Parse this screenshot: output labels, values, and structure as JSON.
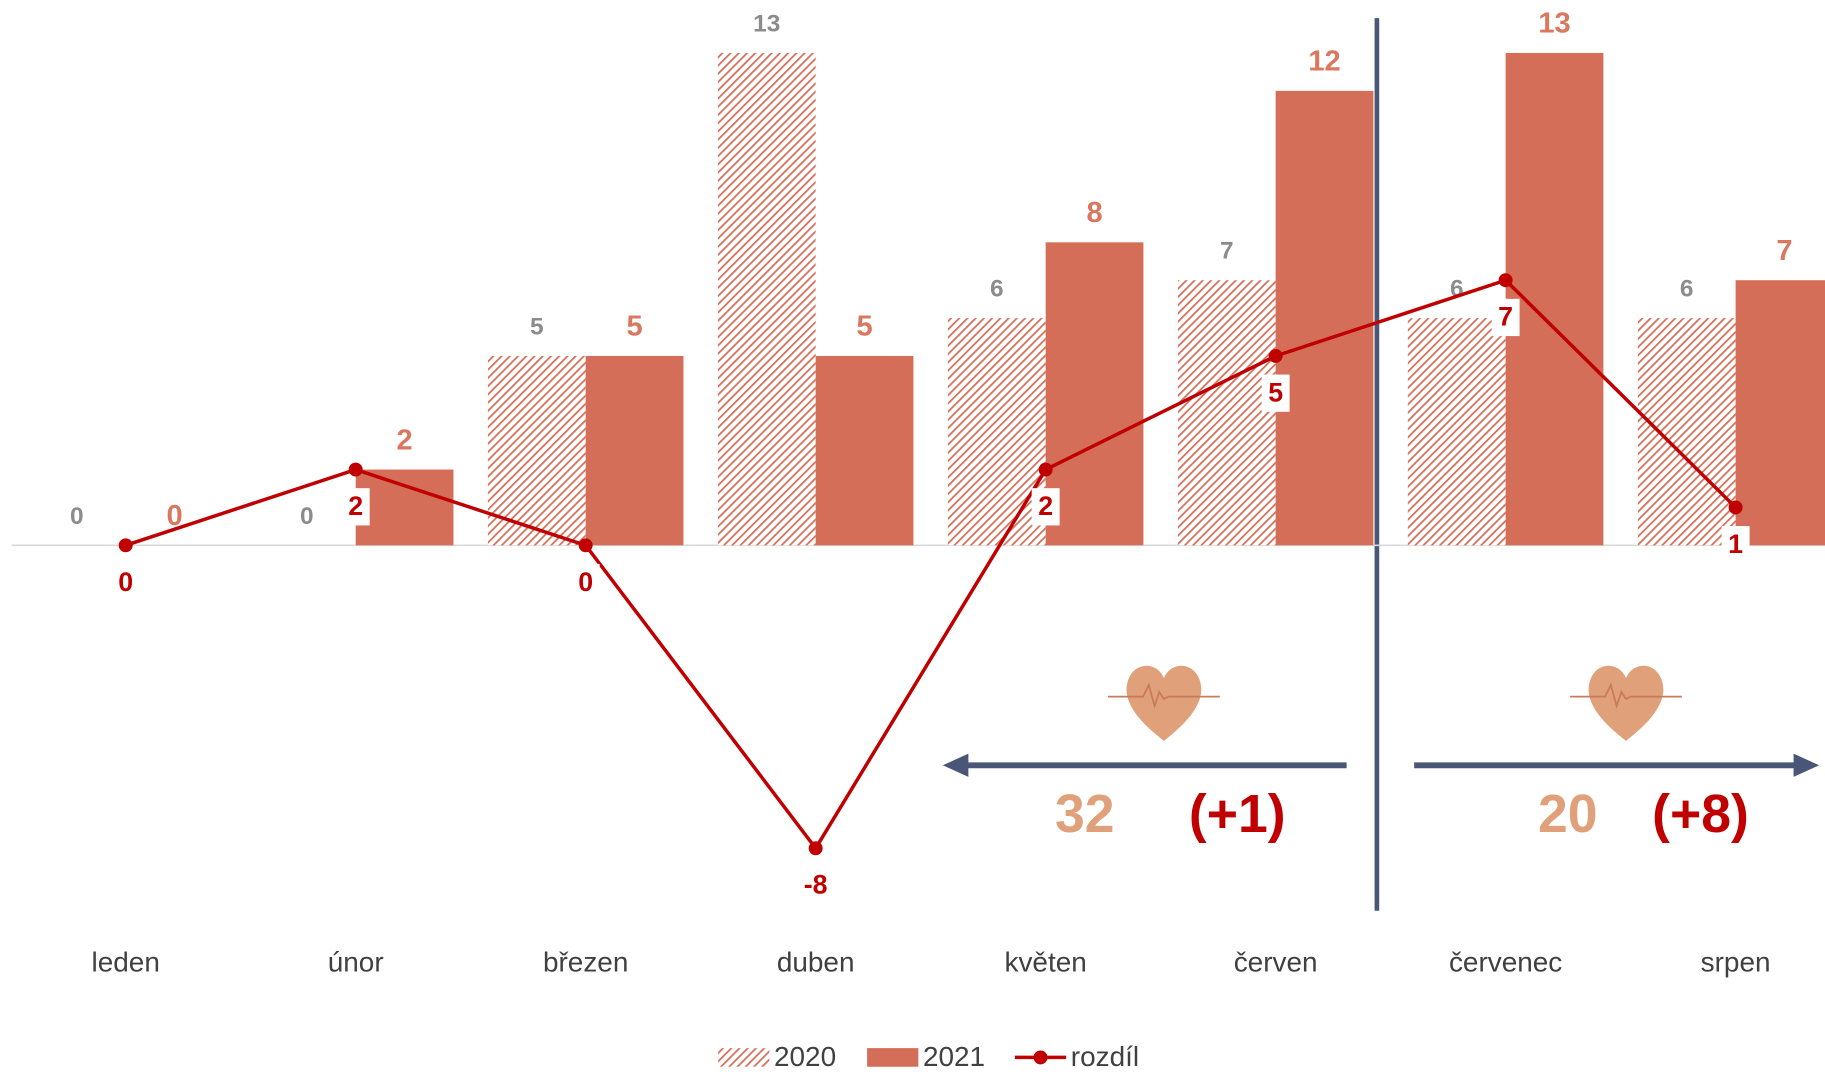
{
  "chart_data": {
    "type": "bar",
    "categories": [
      "leden",
      "únor",
      "březen",
      "duben",
      "květen",
      "červen",
      "červenec",
      "srpen"
    ],
    "series": [
      {
        "name": "2020",
        "color": "#d46e58",
        "pattern": "hatch",
        "values": [
          0,
          0,
          5,
          13,
          6,
          7,
          6,
          6
        ]
      },
      {
        "name": "2021",
        "color": "#d46e58",
        "values": [
          0,
          2,
          5,
          5,
          8,
          12,
          13,
          7
        ]
      },
      {
        "name": "rozdíl",
        "color": "#c00000",
        "type": "line",
        "values": [
          0,
          2,
          0,
          -8,
          2,
          5,
          7,
          1
        ]
      }
    ],
    "ylim": [
      -10,
      13
    ],
    "annotations": [
      "32",
      "(+1)",
      "20",
      "(+8)"
    ],
    "legend": "bottom"
  }
}
